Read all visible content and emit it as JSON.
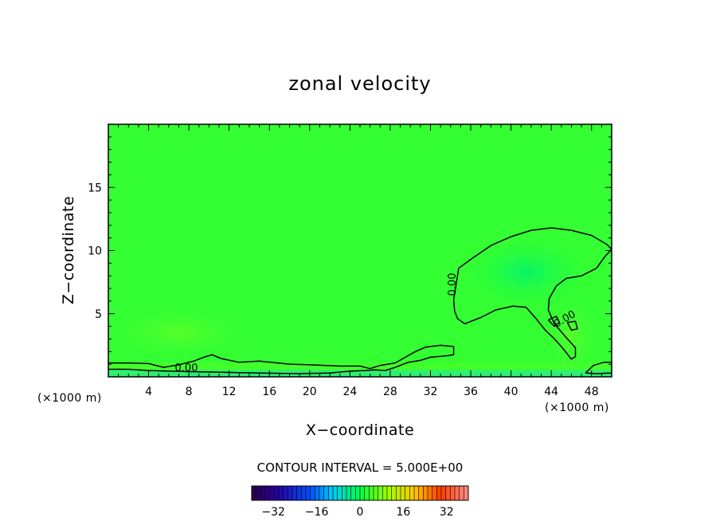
{
  "chart_data": {
    "type": "contour",
    "title": "zonal velocity",
    "xlabel": "X−coordinate",
    "ylabel": "Z−coordinate",
    "x_unit_label": "(×1000 m)",
    "z_unit_label": "(×1000 m)",
    "xlim": [
      0,
      50
    ],
    "zlim": [
      0,
      20
    ],
    "x_ticks": [
      4,
      8,
      12,
      16,
      20,
      24,
      28,
      32,
      36,
      40,
      44,
      48
    ],
    "z_ticks": [
      5,
      10,
      15
    ],
    "contour_label": "0.00",
    "contour_interval_text": "CONTOUR INTERVAL = 5.000E+00",
    "contour_interval": 5.0,
    "colorbar": {
      "range": [
        -40,
        40
      ],
      "ticks": [
        -32,
        -16,
        0,
        16,
        32
      ],
      "colormap": "rainbow",
      "low_color": "#2a004a",
      "mid_color": "#00ff44",
      "high_color": "#ff8080"
    },
    "field_base_color": "#33ff33",
    "surface_layer_color": "#22e6a0",
    "contours": [
      {
        "name": "upper-cell",
        "x": [
          34.3,
          34.8,
          36,
          38,
          40,
          42,
          44,
          46,
          48,
          49.5,
          50,
          49.3,
          48.5,
          47,
          45.5,
          44.5,
          43.8,
          43.7,
          44.3,
          45.6,
          46.4,
          46.4,
          46,
          45.1,
          44.2,
          43.4,
          42.5,
          41.5,
          40.2,
          38.5,
          37,
          35.4,
          34.7,
          34.4,
          34.3
        ],
        "z": [
          6.1,
          8.6,
          9.3,
          10.4,
          11.1,
          11.6,
          11.8,
          11.6,
          11.2,
          10.5,
          10.1,
          9.5,
          8.6,
          8.0,
          7.8,
          7.2,
          6.2,
          5.3,
          4.2,
          3.0,
          2.3,
          1.6,
          1.4,
          2.3,
          3.1,
          3.7,
          4.6,
          5.5,
          5.6,
          5.3,
          4.7,
          4.2,
          4.6,
          5.2,
          6.1
        ]
      },
      {
        "name": "small-loop-1",
        "x": [
          43.7,
          44.5,
          44.8,
          44.3,
          43.7
        ],
        "z": [
          4.5,
          4.8,
          4.3,
          4.0,
          4.5
        ]
      },
      {
        "name": "small-loop-2",
        "x": [
          45.6,
          46.4,
          46.6,
          46.0,
          45.6
        ],
        "z": [
          4.3,
          4.4,
          3.8,
          3.7,
          4.3
        ]
      },
      {
        "name": "near-surface",
        "x": [
          0,
          2,
          4,
          5.5,
          7,
          8.5,
          9.5,
          10.3,
          11.2,
          13,
          15,
          18,
          20,
          23,
          25,
          26,
          27,
          28.5,
          29.5,
          30.5,
          31.5,
          33,
          34.3,
          34.3,
          33.5,
          32,
          31,
          29.8,
          28.5,
          27.5,
          26.5,
          25.5,
          24,
          22,
          19,
          15,
          12,
          9,
          6,
          4,
          2,
          0
        ],
        "z": [
          1.1,
          1.1,
          1.05,
          0.75,
          0.95,
          1.25,
          1.55,
          1.75,
          1.45,
          1.15,
          1.25,
          1.0,
          0.95,
          0.85,
          0.85,
          0.65,
          0.9,
          1.1,
          1.55,
          2.0,
          2.35,
          2.5,
          2.4,
          1.75,
          1.65,
          1.55,
          1.3,
          1.15,
          0.75,
          0.5,
          0.55,
          0.5,
          0.45,
          0.3,
          0.25,
          0.3,
          0.35,
          0.4,
          0.45,
          0.5,
          0.6,
          0.6
        ]
      },
      {
        "name": "right-surface",
        "x": [
          47.4,
          48.2,
          49.2,
          50,
          50,
          48.5,
          47.4
        ],
        "z": [
          0.3,
          0.9,
          1.15,
          1.15,
          0.3,
          0.25,
          0.3
        ]
      }
    ]
  }
}
